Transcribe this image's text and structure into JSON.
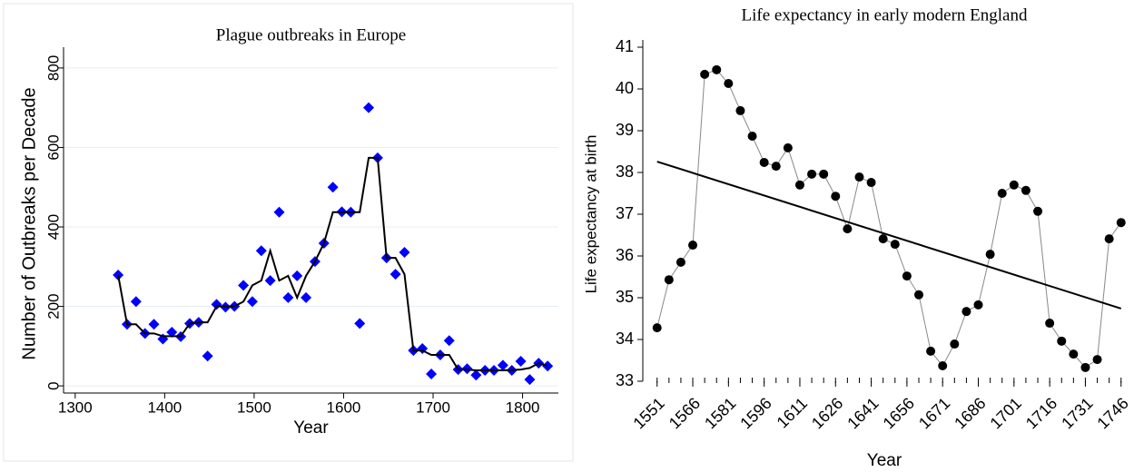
{
  "chart_data": [
    {
      "type": "scatter",
      "title": "Plague outbreaks in Europe",
      "x_label": "Year",
      "y_label": "Number of Outbreaks per Decade",
      "x": [
        1348,
        1358,
        1368,
        1378,
        1388,
        1398,
        1408,
        1418,
        1428,
        1438,
        1448,
        1458,
        1468,
        1478,
        1488,
        1498,
        1508,
        1518,
        1528,
        1538,
        1548,
        1558,
        1568,
        1578,
        1588,
        1598,
        1608,
        1618,
        1628,
        1638,
        1648,
        1658,
        1668,
        1678,
        1688,
        1698,
        1708,
        1718,
        1728,
        1738,
        1748,
        1758,
        1768,
        1778,
        1788,
        1798,
        1808,
        1818,
        1828
      ],
      "series": [
        {
          "type": "scatter",
          "color": "#0000ff",
          "values": [
            279,
            155,
            212,
            132,
            155,
            118,
            135,
            124,
            157,
            160,
            75,
            205,
            198,
            200,
            253,
            212,
            340,
            265,
            437,
            222,
            277,
            222,
            313,
            359,
            500,
            438,
            437,
            157,
            700,
            574,
            322,
            281,
            336,
            89,
            94,
            30,
            78,
            114,
            41,
            43,
            27,
            39,
            39,
            52,
            39,
            62,
            16,
            57,
            50
          ]
        },
        {
          "type": "line",
          "color": "#000000",
          "values": [
            279,
            155,
            155,
            132,
            132,
            125,
            125,
            125,
            157,
            160,
            160,
            200,
            200,
            200,
            212,
            253,
            265,
            340,
            265,
            277,
            222,
            277,
            313,
            359,
            437,
            437,
            437,
            437,
            574,
            574,
            322,
            322,
            281,
            89,
            89,
            78,
            78,
            78,
            41,
            41,
            39,
            39,
            39,
            39,
            40,
            41,
            45,
            57,
            50
          ]
        }
      ],
      "xlim": [
        1287,
        1840
      ],
      "ylim": [
        -18,
        834
      ],
      "xticks": [
        1300,
        1400,
        1500,
        1600,
        1700,
        1800
      ],
      "yticks": [
        0,
        200,
        400,
        600,
        800
      ],
      "grid": true
    },
    {
      "type": "line",
      "title": "Life expectancy in early modern England",
      "x_label": "Year",
      "y_label": "Life expectancy at birth",
      "x": [
        1551,
        1556,
        1561,
        1566,
        1571,
        1576,
        1581,
        1586,
        1591,
        1596,
        1601,
        1606,
        1611,
        1616,
        1621,
        1626,
        1631,
        1636,
        1641,
        1646,
        1651,
        1656,
        1661,
        1666,
        1671,
        1676,
        1681,
        1686,
        1691,
        1696,
        1701,
        1706,
        1711,
        1716,
        1721,
        1726,
        1731,
        1736,
        1741,
        1746
      ],
      "series": [
        {
          "type": "line-points",
          "color": "#000000",
          "values": [
            34.28,
            35.43,
            35.85,
            36.26,
            40.35,
            40.46,
            40.13,
            39.48,
            38.87,
            38.24,
            38.15,
            38.59,
            37.7,
            37.96,
            37.96,
            37.43,
            36.65,
            37.89,
            37.76,
            36.41,
            36.28,
            35.52,
            35.07,
            33.72,
            33.37,
            33.89,
            34.67,
            34.83,
            36.04,
            37.5,
            37.7,
            37.57,
            37.07,
            34.39,
            33.96,
            33.65,
            33.33,
            33.52,
            36.41,
            36.8
          ]
        },
        {
          "type": "line",
          "color": "#000000",
          "x": [
            1551,
            1746
          ],
          "values": [
            38.26,
            34.74
          ]
        }
      ],
      "xlim": [
        1545,
        1748
      ],
      "ylim": [
        33,
        41
      ],
      "xticks": [
        1551,
        1566,
        1581,
        1596,
        1611,
        1626,
        1641,
        1656,
        1671,
        1686,
        1701,
        1716,
        1731,
        1746
      ],
      "yticks": [
        33,
        34,
        35,
        36,
        37,
        38,
        39,
        40,
        41
      ],
      "grid": false
    }
  ]
}
